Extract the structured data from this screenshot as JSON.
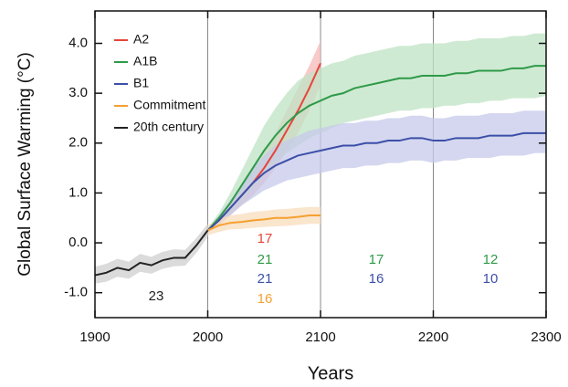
{
  "chart_data": {
    "type": "line",
    "xlabel": "Years",
    "ylabel": "Global Surface Warming (°C)",
    "xlim": [
      1900,
      2300
    ],
    "xticks": [
      1900,
      2000,
      2100,
      2200,
      2300
    ],
    "ylim": [
      -1.5,
      4.65
    ],
    "yticks": [
      {
        "value": -1,
        "label": "-1.0"
      },
      {
        "value": 0,
        "label": "0.0"
      },
      {
        "value": 1,
        "label": "1.0"
      },
      {
        "value": 2,
        "label": "2.0"
      },
      {
        "value": 3,
        "label": "3.0"
      },
      {
        "value": 4,
        "label": "4.0"
      }
    ],
    "grid_x": [
      2000,
      2100,
      2200
    ],
    "legend": "upper left",
    "x": [
      1900,
      1910,
      1920,
      1930,
      1940,
      1950,
      1960,
      1970,
      1980,
      1990,
      2000,
      2010,
      2020,
      2030,
      2040,
      2050,
      2060,
      2070,
      2080,
      2090,
      2100,
      2110,
      2120,
      2130,
      2140,
      2150,
      2160,
      2170,
      2180,
      2190,
      2200,
      2210,
      2220,
      2230,
      2240,
      2250,
      2260,
      2270,
      2280,
      2290,
      2300
    ],
    "series": [
      {
        "name": "A2",
        "color": "#e8443a",
        "band_color": "#f5b8b8",
        "values": [
          null,
          null,
          null,
          null,
          null,
          null,
          null,
          null,
          null,
          null,
          0.25,
          0.45,
          0.7,
          0.95,
          1.2,
          1.5,
          1.85,
          2.25,
          2.65,
          3.1,
          3.6,
          null,
          null,
          null,
          null,
          null,
          null,
          null,
          null,
          null,
          null,
          null,
          null,
          null,
          null,
          null,
          null,
          null,
          null,
          null,
          null
        ],
        "lower": [
          null,
          null,
          null,
          null,
          null,
          null,
          null,
          null,
          null,
          null,
          0.2,
          0.35,
          0.55,
          0.75,
          0.95,
          1.2,
          1.5,
          1.85,
          2.2,
          2.65,
          3.15,
          null,
          null,
          null,
          null,
          null,
          null,
          null,
          null,
          null,
          null,
          null,
          null,
          null,
          null,
          null,
          null,
          null,
          null,
          null,
          null
        ],
        "upper": [
          null,
          null,
          null,
          null,
          null,
          null,
          null,
          null,
          null,
          null,
          0.3,
          0.55,
          0.85,
          1.15,
          1.45,
          1.8,
          2.2,
          2.65,
          3.1,
          3.55,
          4.05,
          null,
          null,
          null,
          null,
          null,
          null,
          null,
          null,
          null,
          null,
          null,
          null,
          null,
          null,
          null,
          null,
          null,
          null,
          null,
          null
        ]
      },
      {
        "name": "A1B",
        "color": "#2e9a48",
        "band_color": "#bfe3c4",
        "values": [
          null,
          null,
          null,
          null,
          null,
          null,
          null,
          null,
          null,
          null,
          0.25,
          0.5,
          0.8,
          1.15,
          1.5,
          1.85,
          2.15,
          2.4,
          2.6,
          2.75,
          2.85,
          2.95,
          3.0,
          3.1,
          3.15,
          3.2,
          3.25,
          3.3,
          3.3,
          3.35,
          3.35,
          3.35,
          3.4,
          3.4,
          3.45,
          3.45,
          3.45,
          3.5,
          3.5,
          3.55,
          3.55
        ],
        "lower": [
          null,
          null,
          null,
          null,
          null,
          null,
          null,
          null,
          null,
          null,
          0.2,
          0.4,
          0.6,
          0.85,
          1.1,
          1.35,
          1.6,
          1.8,
          1.95,
          2.1,
          2.2,
          2.3,
          2.4,
          2.45,
          2.5,
          2.55,
          2.6,
          2.65,
          2.65,
          2.7,
          2.7,
          2.75,
          2.75,
          2.8,
          2.8,
          2.85,
          2.85,
          2.9,
          2.9,
          2.9,
          2.95
        ],
        "upper": [
          null,
          null,
          null,
          null,
          null,
          null,
          null,
          null,
          null,
          null,
          0.3,
          0.6,
          1.0,
          1.45,
          1.9,
          2.35,
          2.7,
          3.0,
          3.25,
          3.4,
          3.5,
          3.6,
          3.65,
          3.75,
          3.8,
          3.85,
          3.9,
          3.95,
          3.95,
          4.0,
          4.0,
          4.0,
          4.05,
          4.05,
          4.1,
          4.1,
          4.1,
          4.15,
          4.15,
          4.2,
          4.2
        ]
      },
      {
        "name": "B1",
        "color": "#3c4fa8",
        "band_color": "#c6c9ea",
        "values": [
          null,
          null,
          null,
          null,
          null,
          null,
          null,
          null,
          null,
          null,
          0.25,
          0.45,
          0.7,
          0.95,
          1.2,
          1.4,
          1.55,
          1.65,
          1.75,
          1.8,
          1.85,
          1.9,
          1.95,
          1.95,
          2.0,
          2.0,
          2.05,
          2.05,
          2.1,
          2.1,
          2.05,
          2.05,
          2.1,
          2.1,
          2.1,
          2.15,
          2.15,
          2.15,
          2.2,
          2.2,
          2.2
        ],
        "lower": [
          null,
          null,
          null,
          null,
          null,
          null,
          null,
          null,
          null,
          null,
          0.2,
          0.35,
          0.55,
          0.75,
          0.9,
          1.05,
          1.15,
          1.25,
          1.3,
          1.35,
          1.4,
          1.45,
          1.5,
          1.5,
          1.55,
          1.55,
          1.6,
          1.6,
          1.65,
          1.65,
          1.6,
          1.65,
          1.65,
          1.7,
          1.7,
          1.7,
          1.75,
          1.75,
          1.75,
          1.8,
          1.8
        ],
        "upper": [
          null,
          null,
          null,
          null,
          null,
          null,
          null,
          null,
          null,
          null,
          0.3,
          0.55,
          0.85,
          1.15,
          1.5,
          1.75,
          1.95,
          2.05,
          2.15,
          2.25,
          2.3,
          2.35,
          2.4,
          2.4,
          2.45,
          2.45,
          2.5,
          2.5,
          2.55,
          2.55,
          2.5,
          2.5,
          2.55,
          2.55,
          2.55,
          2.6,
          2.6,
          2.6,
          2.65,
          2.65,
          2.65
        ]
      },
      {
        "name": "Commitment",
        "color": "#f5a030",
        "band_color": "#f8dcbc",
        "values": [
          null,
          null,
          null,
          null,
          null,
          null,
          null,
          null,
          null,
          null,
          0.25,
          0.35,
          0.4,
          0.42,
          0.45,
          0.47,
          0.5,
          0.5,
          0.52,
          0.55,
          0.55,
          null,
          null,
          null,
          null,
          null,
          null,
          null,
          null,
          null,
          null,
          null,
          null,
          null,
          null,
          null,
          null,
          null,
          null,
          null,
          null
        ],
        "lower": [
          null,
          null,
          null,
          null,
          null,
          null,
          null,
          null,
          null,
          null,
          0.15,
          0.22,
          0.27,
          0.28,
          0.3,
          0.32,
          0.33,
          0.34,
          0.36,
          0.38,
          0.38,
          null,
          null,
          null,
          null,
          null,
          null,
          null,
          null,
          null,
          null,
          null,
          null,
          null,
          null,
          null,
          null,
          null,
          null,
          null,
          null
        ],
        "upper": [
          null,
          null,
          null,
          null,
          null,
          null,
          null,
          null,
          null,
          null,
          0.35,
          0.48,
          0.55,
          0.58,
          0.62,
          0.64,
          0.67,
          0.68,
          0.7,
          0.72,
          0.72,
          null,
          null,
          null,
          null,
          null,
          null,
          null,
          null,
          null,
          null,
          null,
          null,
          null,
          null,
          null,
          null,
          null,
          null,
          null,
          null
        ]
      },
      {
        "name": "20th century",
        "color": "#222222",
        "band_color": "#cfcfcf",
        "values": [
          -0.65,
          -0.6,
          -0.5,
          -0.55,
          -0.4,
          -0.45,
          -0.35,
          -0.3,
          -0.3,
          -0.05,
          0.25,
          null,
          null,
          null,
          null,
          null,
          null,
          null,
          null,
          null,
          null,
          null,
          null,
          null,
          null,
          null,
          null,
          null,
          null,
          null,
          null,
          null,
          null,
          null,
          null,
          null,
          null,
          null,
          null,
          null,
          null
        ],
        "lower": [
          -0.82,
          -0.78,
          -0.68,
          -0.72,
          -0.58,
          -0.62,
          -0.52,
          -0.47,
          -0.46,
          -0.2,
          0.12,
          null,
          null,
          null,
          null,
          null,
          null,
          null,
          null,
          null,
          null,
          null,
          null,
          null,
          null,
          null,
          null,
          null,
          null,
          null,
          null,
          null,
          null,
          null,
          null,
          null,
          null,
          null,
          null,
          null,
          null
        ],
        "upper": [
          -0.48,
          -0.42,
          -0.32,
          -0.38,
          -0.22,
          -0.28,
          -0.18,
          -0.13,
          -0.14,
          0.1,
          0.38,
          null,
          null,
          null,
          null,
          null,
          null,
          null,
          null,
          null,
          null,
          null,
          null,
          null,
          null,
          null,
          null,
          null,
          null,
          null,
          null,
          null,
          null,
          null,
          null,
          null,
          null,
          null,
          null,
          null,
          null
        ]
      }
    ],
    "annotations": [
      {
        "text": "23",
        "color": "#222222"
      },
      {
        "text": "17",
        "color": "#e8443a"
      },
      {
        "text": "21",
        "color": "#2e9a48"
      },
      {
        "text": "21",
        "color": "#3c4fa8"
      },
      {
        "text": "16",
        "color": "#f5a030"
      },
      {
        "text": "17",
        "color": "#2e9a48"
      },
      {
        "text": "16",
        "color": "#3c4fa8"
      },
      {
        "text": "12",
        "color": "#2e9a48"
      },
      {
        "text": "10",
        "color": "#3c4fa8"
      }
    ]
  }
}
